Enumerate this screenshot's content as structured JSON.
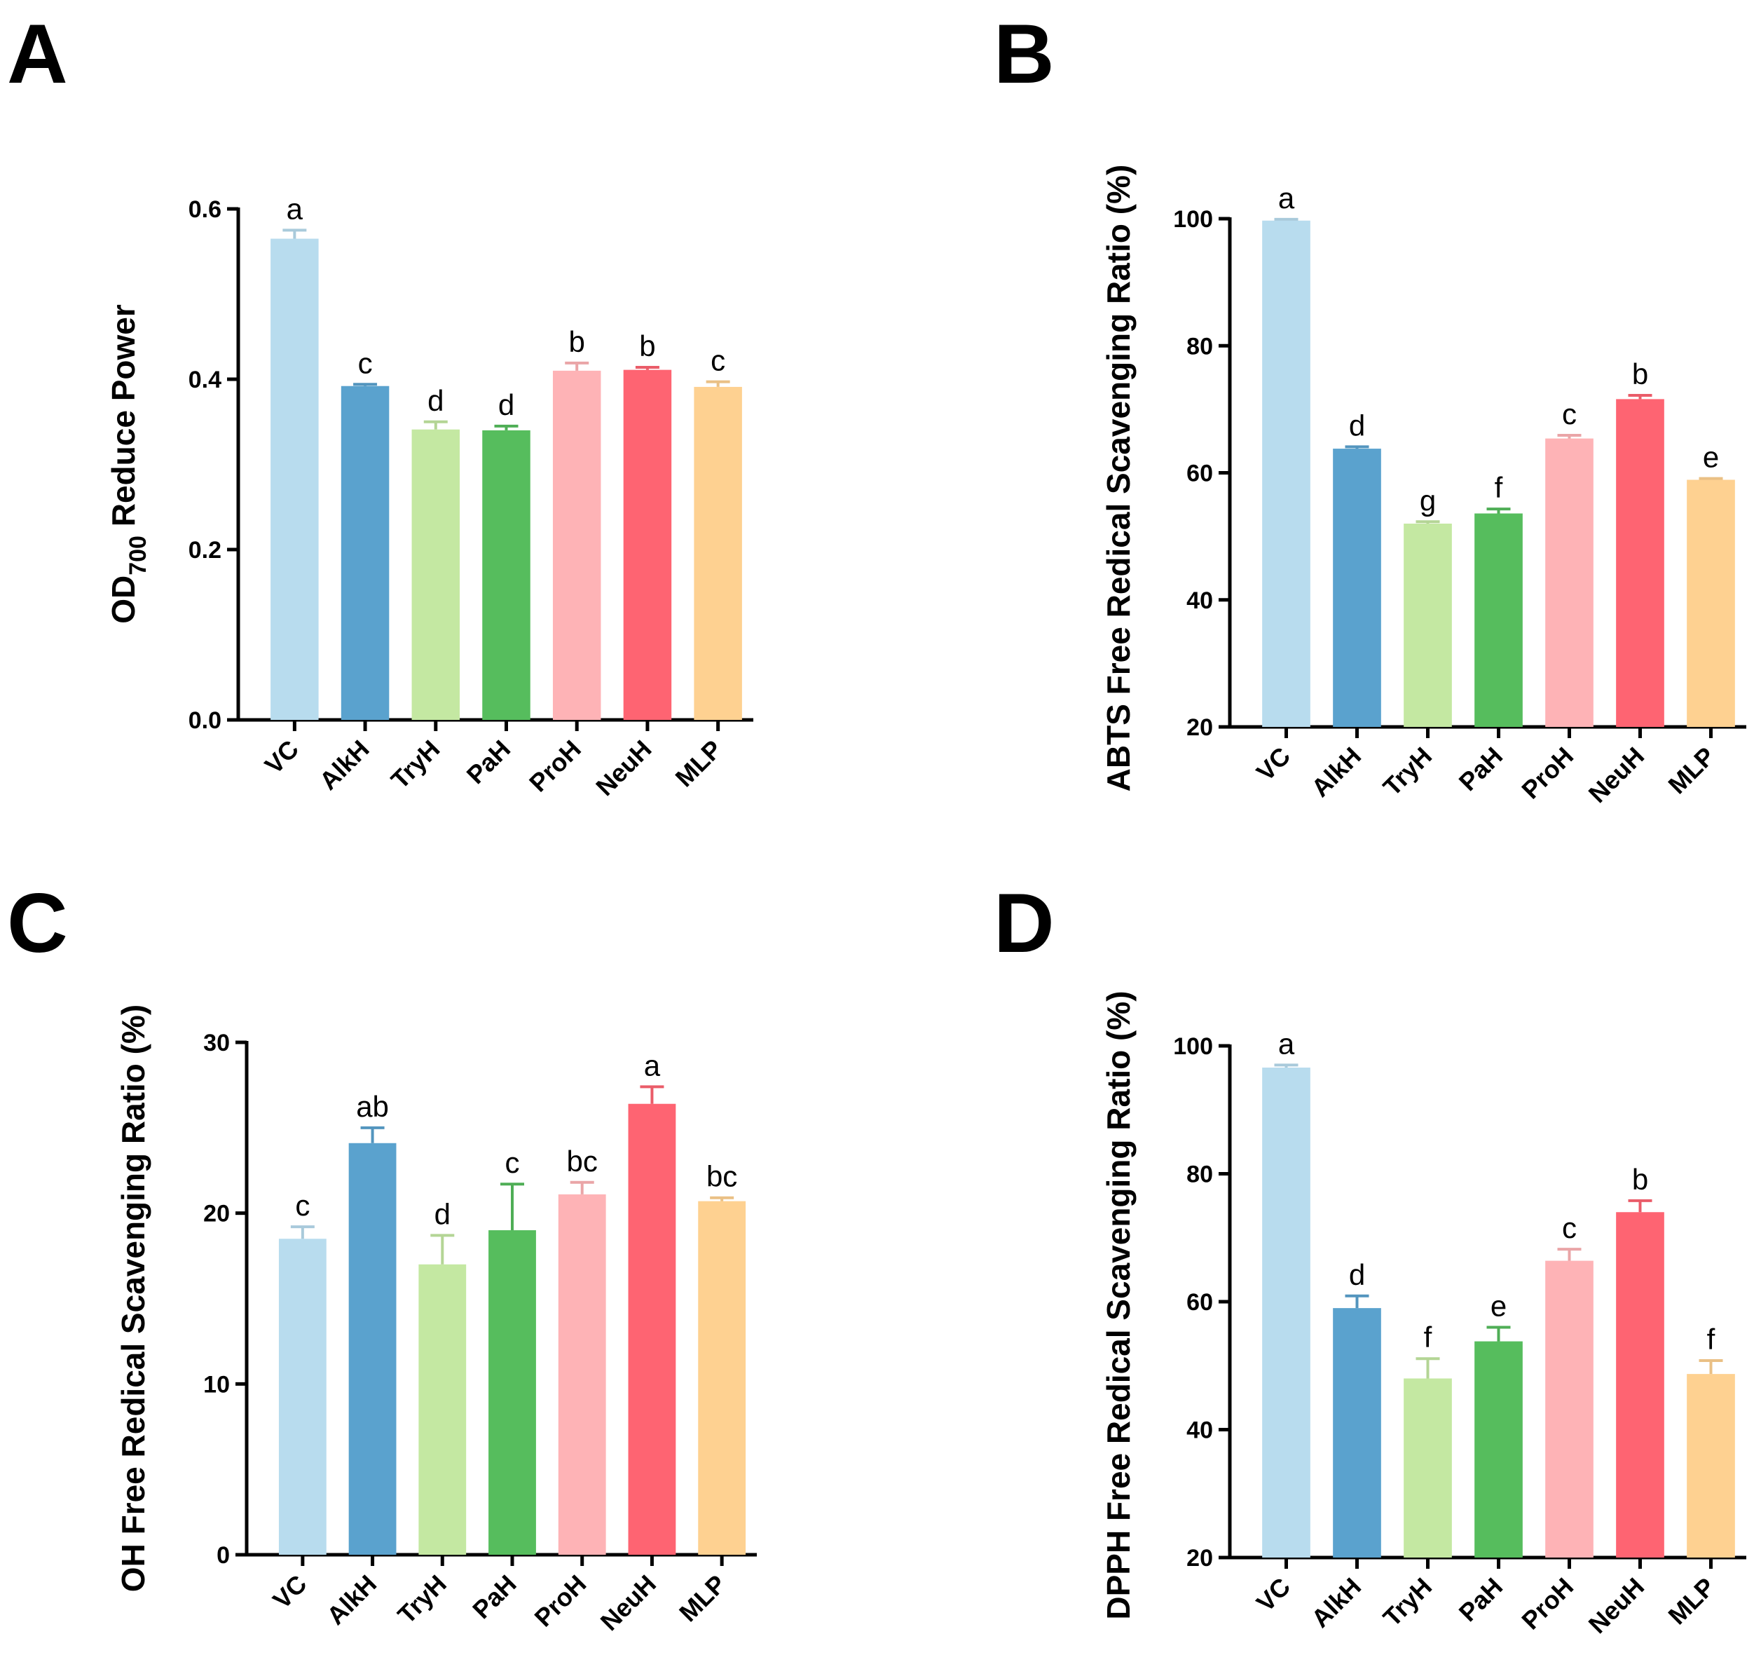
{
  "chart_data": [
    {
      "type": "bar",
      "panel": "A",
      "title": "",
      "xlabel": "",
      "ylabel": "OD",
      "ylabel_subscript": "700",
      "ylabel_suffix": " Reduce Power",
      "categories": [
        "VC",
        "AlkH",
        "TryH",
        "PaH",
        "ProH",
        "NeuH",
        "MLP"
      ],
      "values": [
        0.565,
        0.392,
        0.341,
        0.34,
        0.41,
        0.411,
        0.391
      ],
      "errors": [
        0.01,
        0.002,
        0.009,
        0.005,
        0.009,
        0.003,
        0.006
      ],
      "significance": [
        "a",
        "c",
        "d",
        "d",
        "b",
        "b",
        "c"
      ],
      "ylim": [
        0,
        0.6
      ],
      "yticks": [
        0.0,
        0.2,
        0.4,
        0.6
      ],
      "ytick_labels": [
        "0.0",
        "0.2",
        "0.4",
        "0.6"
      ]
    },
    {
      "type": "bar",
      "panel": "B",
      "title": "",
      "xlabel": "",
      "ylabel": "ABTS Free Redical Scavenging Ratio (%)",
      "categories": [
        "VC",
        "AlkH",
        "TryH",
        "PaH",
        "ProH",
        "NeuH",
        "MLP"
      ],
      "values": [
        99.7,
        63.8,
        52.0,
        53.6,
        65.4,
        71.6,
        58.9
      ],
      "errors": [
        0.2,
        0.3,
        0.3,
        0.7,
        0.5,
        0.6,
        0.2
      ],
      "significance": [
        "a",
        "d",
        "g",
        "f",
        "c",
        "b",
        "e"
      ],
      "ylim": [
        20,
        100
      ],
      "yticks": [
        20,
        40,
        60,
        80,
        100
      ],
      "ytick_labels": [
        "20",
        "40",
        "60",
        "80",
        "100"
      ]
    },
    {
      "type": "bar",
      "panel": "C",
      "title": "",
      "xlabel": "",
      "ylabel": "OH Free Redical Scavenging Ratio (%)",
      "categories": [
        "VC",
        "AlkH",
        "TryH",
        "PaH",
        "ProH",
        "NeuH",
        "MLP"
      ],
      "values": [
        18.5,
        24.1,
        17.0,
        19.0,
        21.1,
        26.4,
        20.7
      ],
      "errors": [
        0.7,
        0.9,
        1.7,
        2.7,
        0.7,
        1.0,
        0.2
      ],
      "significance": [
        "c",
        "ab",
        "d",
        "c",
        "bc",
        "a",
        "bc"
      ],
      "ylim": [
        0,
        30
      ],
      "yticks": [
        0,
        10,
        20,
        30
      ],
      "ytick_labels": [
        "0",
        "10",
        "20",
        "30"
      ]
    },
    {
      "type": "bar",
      "panel": "D",
      "title": "",
      "xlabel": "",
      "ylabel": "DPPH Free Redical Scavenging Ratio (%)",
      "categories": [
        "VC",
        "AlkH",
        "TryH",
        "PaH",
        "ProH",
        "NeuH",
        "MLP"
      ],
      "values": [
        96.6,
        59.0,
        48.0,
        53.8,
        66.4,
        74.0,
        48.7
      ],
      "errors": [
        0.4,
        1.9,
        3.1,
        2.2,
        1.8,
        1.8,
        2.1
      ],
      "significance": [
        "a",
        "d",
        "f",
        "e",
        "c",
        "b",
        "f"
      ],
      "ylim": [
        20,
        100
      ],
      "yticks": [
        20,
        40,
        60,
        80,
        100
      ],
      "ytick_labels": [
        "20",
        "40",
        "60",
        "80",
        "100"
      ]
    }
  ],
  "colors": {
    "bars": [
      "#b8dcee",
      "#5aa2ce",
      "#c4e8a2",
      "#56bd5d",
      "#feb3b6",
      "#fe6472",
      "#fed191"
    ],
    "axis": "#000000"
  }
}
